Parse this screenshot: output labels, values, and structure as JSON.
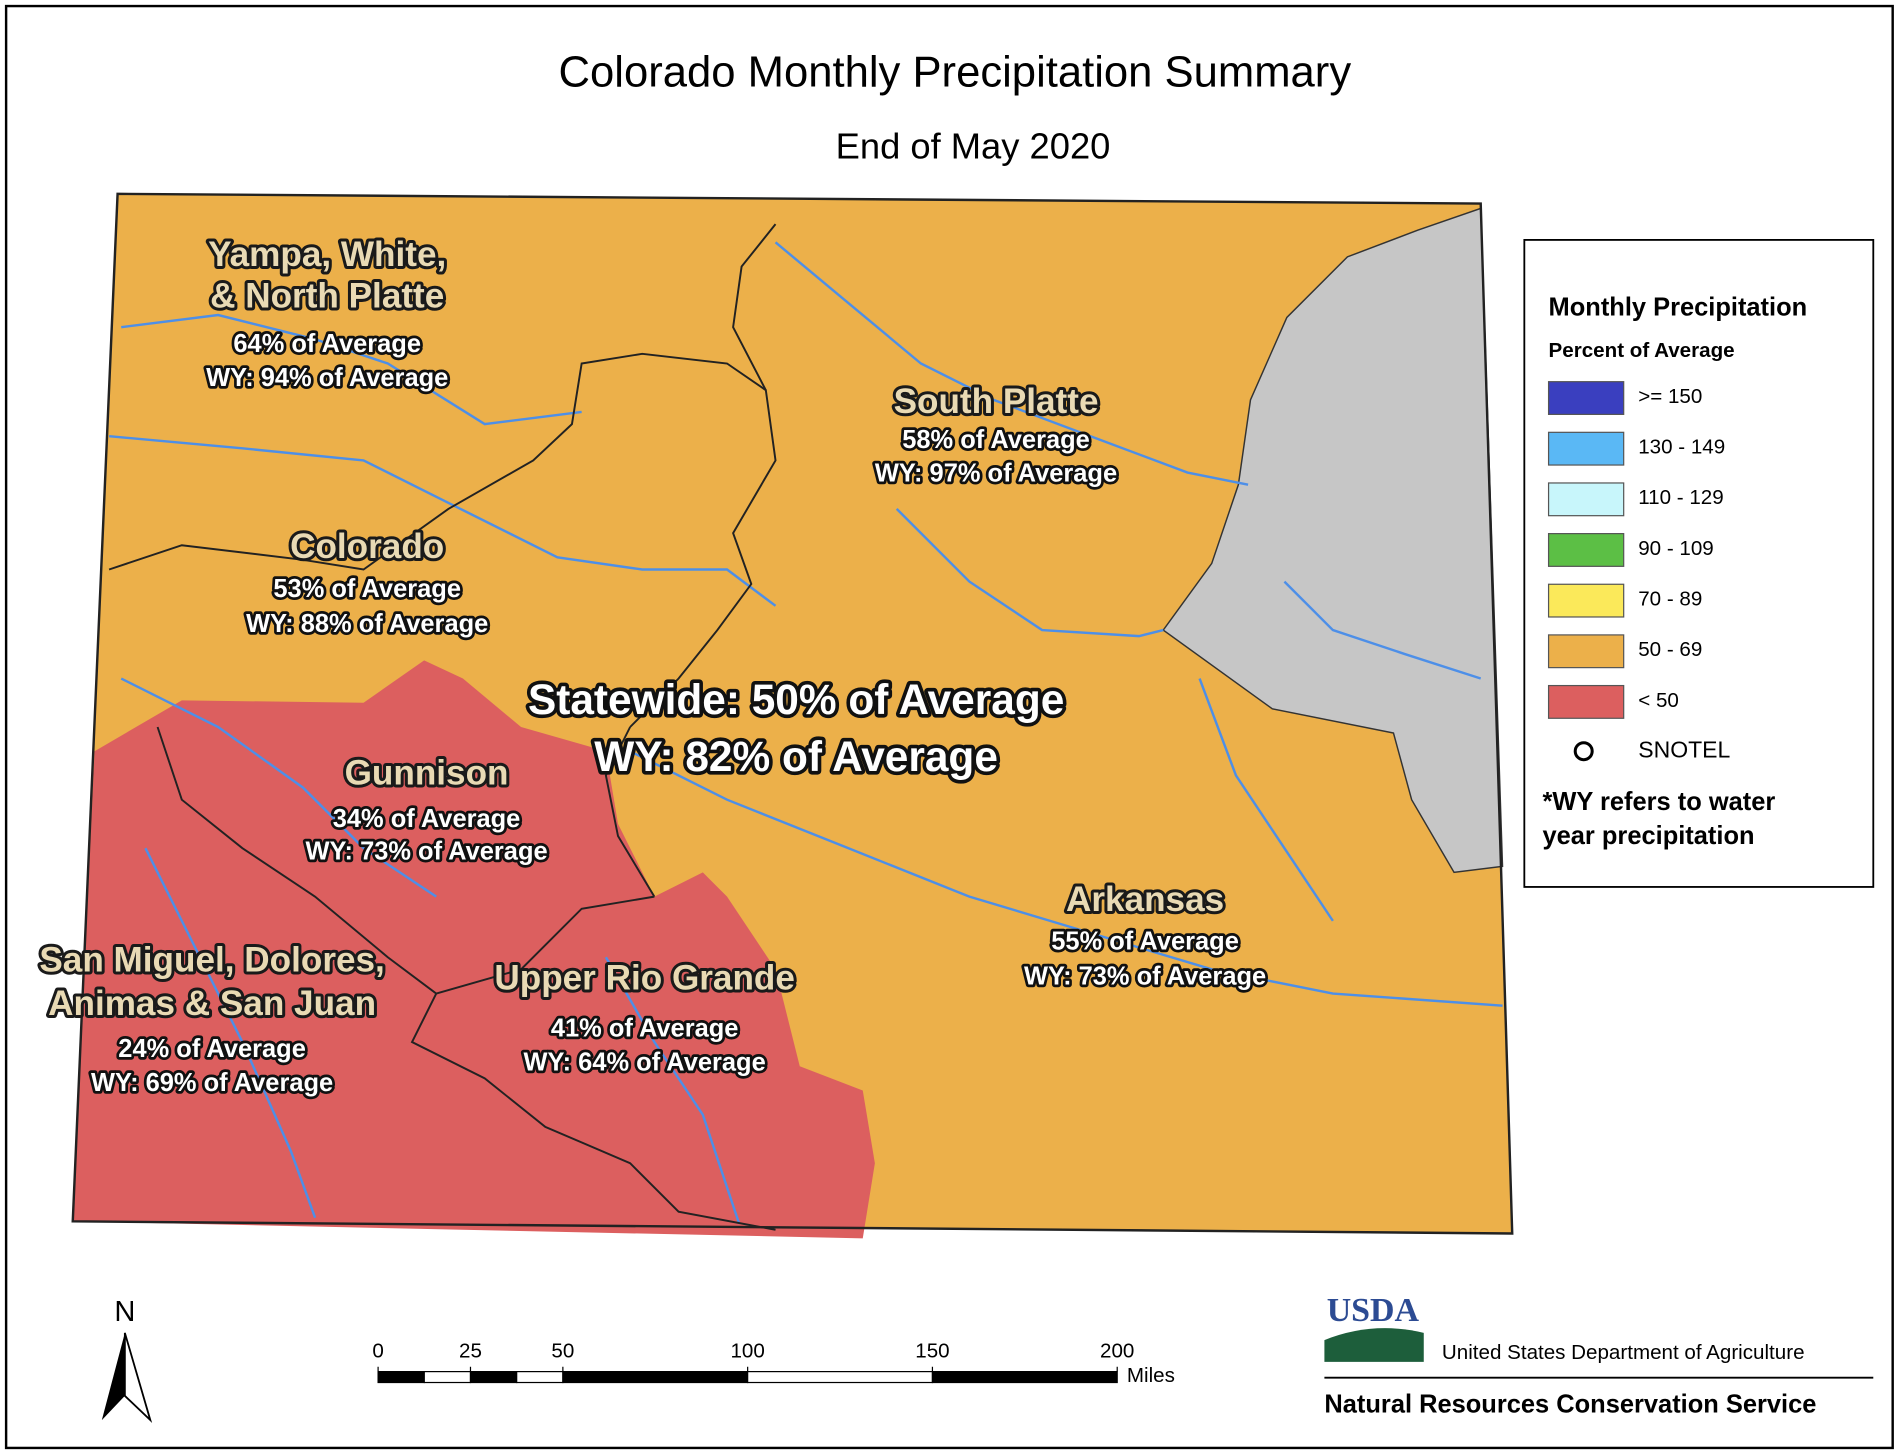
{
  "title": "Colorado Monthly Precipitation Summary",
  "subtitle": "End of May 2020",
  "basins": [
    {
      "name_lines": [
        "Yampa, White,",
        "& North Platte"
      ],
      "percent": "64% of Average",
      "wy": "WY: 94% of Average",
      "color": "#ecb04a"
    },
    {
      "name_lines": [
        "South Platte"
      ],
      "percent": "58% of Average",
      "wy": "WY: 97% of Average",
      "color": "#ecb04a"
    },
    {
      "name_lines": [
        "Colorado"
      ],
      "percent": "53% of Average",
      "wy": "WY: 88% of Average",
      "color": "#ecb04a"
    },
    {
      "name_lines": [
        "Gunnison"
      ],
      "percent": "34% of Average",
      "wy": "WY: 73% of Average",
      "color": "#dc5f5f"
    },
    {
      "name_lines": [
        "Arkansas"
      ],
      "percent": "55% of Average",
      "wy": "WY: 73% of Average",
      "color": "#ecb04a"
    },
    {
      "name_lines": [
        "San Miguel, Dolores,",
        "Animas & San Juan"
      ],
      "percent": "24% of Average",
      "wy": "WY: 69% of Average",
      "color": "#dc5f5f"
    },
    {
      "name_lines": [
        "Upper Rio Grande"
      ],
      "percent": "41% of Average",
      "wy": "WY: 64% of Average",
      "color": "#dc5f5f"
    }
  ],
  "statewide": [
    "Statewide: 50% of Average",
    "WY: 82% of Average"
  ],
  "legend": {
    "title": "Monthly Precipitation",
    "subtitle": "Percent of Average",
    "entries": [
      {
        "label": ">= 150",
        "color": "#3a3fbf"
      },
      {
        "label": "130 - 149",
        "color": "#5ab8f5"
      },
      {
        "label": "110 - 129",
        "color": "#c8f6fb"
      },
      {
        "label": "90 - 109",
        "color": "#5cbf45"
      },
      {
        "label": "70 - 89",
        "color": "#fbe95a"
      },
      {
        "label": "50 - 69",
        "color": "#ecb04a"
      },
      {
        "label": "< 50",
        "color": "#dc5f5f"
      }
    ],
    "snotel": "SNOTEL",
    "note_lines": [
      "*WY refers to water",
      "year precipitation"
    ]
  },
  "scale_bar": {
    "ticks": [
      0,
      25,
      50,
      100,
      150,
      200
    ],
    "unit": "Miles"
  },
  "north": "N",
  "agency": {
    "logo": "USDA",
    "department": "United States Department of Agriculture",
    "service": "Natural Resources Conservation Service"
  }
}
